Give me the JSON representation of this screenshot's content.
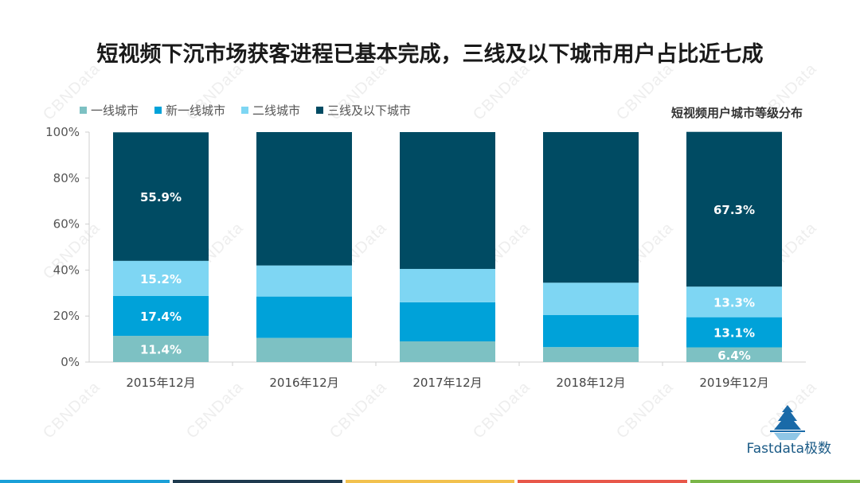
{
  "title": "短视频下沉市场获客进程已基本完成，三线及以下城市用户占比近七成",
  "subtitle": "短视频用户城市等级分布",
  "watermark": "CBNData",
  "logo": {
    "text": "Fastdata极数",
    "icon": "iceberg-logo-icon"
  },
  "colors": {
    "tier1": "#7dc1c3",
    "newtier1": "#00a2d9",
    "tier2": "#7ed6f3",
    "tier3plus": "#004b63",
    "stripe": [
      "#1aa0d8",
      "#1e3a4f",
      "#f2c14e",
      "#e8574a",
      "#7ab648"
    ]
  },
  "chart_data": {
    "type": "bar",
    "stacked": true,
    "categories": [
      "2015年12月",
      "2016年12月",
      "2017年12月",
      "2018年12月",
      "2019年12月"
    ],
    "ylim": [
      0,
      100
    ],
    "yticks": [
      "0%",
      "20%",
      "40%",
      "60%",
      "80%",
      "100%"
    ],
    "legend_position": "top-left",
    "series": [
      {
        "name": "一线城市",
        "color_key": "tier1",
        "values": [
          11.4,
          10.5,
          9.0,
          6.5,
          6.4
        ],
        "labels": [
          "11.4%",
          "",
          "",
          "",
          "6.4%"
        ]
      },
      {
        "name": "新一线城市",
        "color_key": "newtier1",
        "values": [
          17.4,
          18.0,
          17.0,
          14.0,
          13.1
        ],
        "labels": [
          "17.4%",
          "",
          "",
          "",
          "13.1%"
        ]
      },
      {
        "name": "二线城市",
        "color_key": "tier2",
        "values": [
          15.2,
          13.5,
          14.5,
          14.0,
          13.3
        ],
        "labels": [
          "15.2%",
          "",
          "",
          "",
          "13.3%"
        ]
      },
      {
        "name": "三线及以下城市",
        "color_key": "tier3plus",
        "values": [
          55.9,
          58.0,
          59.5,
          65.5,
          67.3
        ],
        "labels": [
          "55.9%",
          "",
          "",
          "",
          "67.3%"
        ]
      }
    ]
  }
}
